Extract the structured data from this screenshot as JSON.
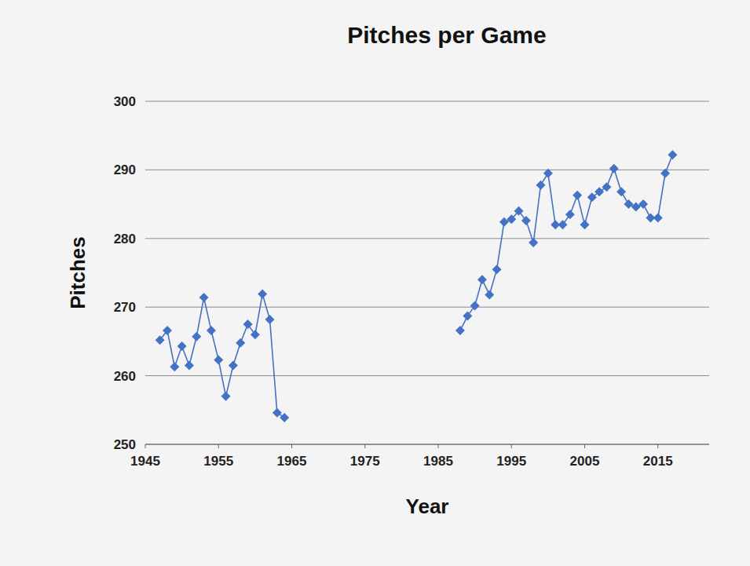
{
  "chart_data": {
    "type": "line",
    "title": "Pitches per Game",
    "x_label": "Year",
    "y_label": "Pitches",
    "x": [
      1947,
      1948,
      1949,
      1950,
      1951,
      1952,
      1953,
      1954,
      1955,
      1956,
      1957,
      1958,
      1959,
      1960,
      1961,
      1962,
      1963,
      1964,
      1965,
      1988,
      1989,
      1990,
      1991,
      1992,
      1993,
      1994,
      1995,
      1996,
      1997,
      1998,
      1999,
      2000,
      2001,
      2002,
      2003,
      2004,
      2005,
      2006,
      2007,
      2008,
      2009,
      2010,
      2011,
      2012,
      2013,
      2014,
      2015,
      2016,
      2017
    ],
    "values": [
      265.2,
      266.6,
      261.3,
      264.3,
      261.5,
      265.7,
      271.4,
      266.6,
      262.3,
      257.0,
      261.5,
      264.8,
      267.5,
      266.0,
      271.9,
      268.2,
      254.6,
      253.9,
      null,
      266.6,
      268.7,
      270.2,
      274.0,
      271.8,
      275.5,
      282.4,
      282.8,
      284.0,
      282.6,
      279.4,
      287.8,
      289.5,
      282.0,
      282.0,
      283.5,
      286.3,
      282.0,
      286.0,
      286.8,
      287.5,
      290.2,
      286.8,
      285.0,
      284.6,
      285.0,
      283.0,
      283.0,
      289.5,
      292.2
    ],
    "color": "#4472c4",
    "marker": "diamond",
    "line_style": "solid",
    "xlim": [
      1945,
      2022
    ],
    "xticks": [
      1945,
      1955,
      1965,
      1975,
      1985,
      1995,
      2005,
      2015
    ],
    "ylim": [
      250,
      300
    ],
    "yticks": [
      250,
      260,
      270,
      280,
      290,
      300
    ],
    "grid": true
  }
}
